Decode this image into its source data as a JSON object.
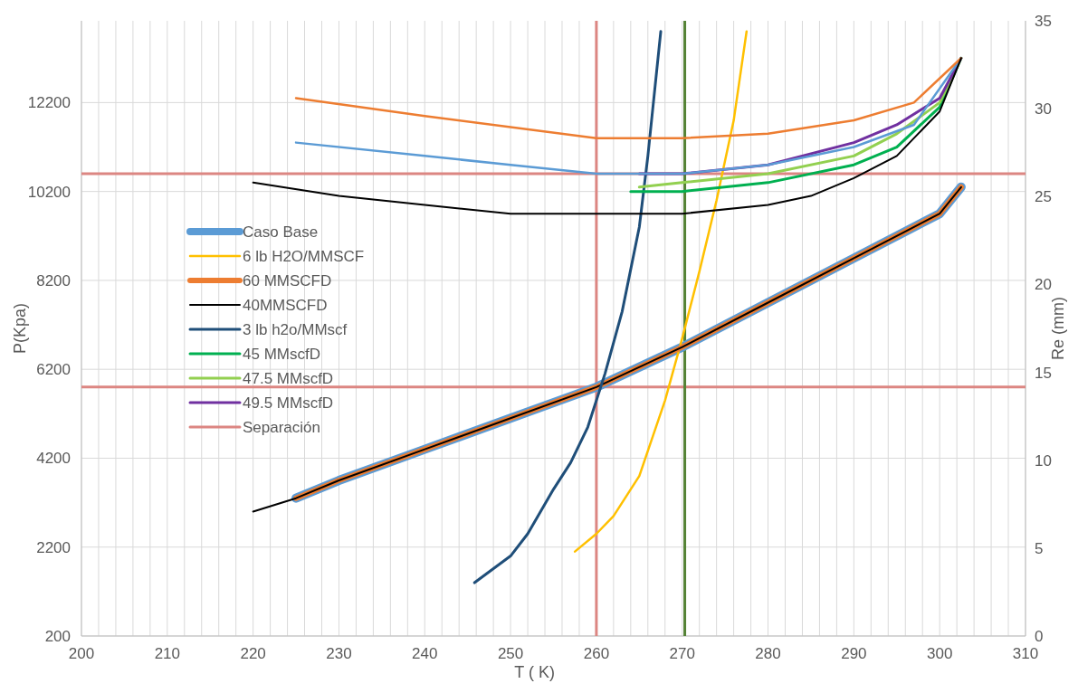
{
  "chart_data": {
    "type": "line",
    "xlabel": "T ( K)",
    "ylabel": "P(Kpa)",
    "y2label": "Re (mm)",
    "xlim": [
      200,
      310
    ],
    "xticks": [
      200,
      {
        "value": 202,
        "label": null
      },
      {
        "value": 204,
        "label": null
      },
      {
        "value": 206,
        "label": null
      },
      {
        "value": 208,
        "label": null
      },
      210,
      {
        "value": 212,
        "label": null
      },
      {
        "value": 214,
        "label": null
      },
      {
        "value": 216,
        "label": null
      },
      {
        "value": 218,
        "label": null
      },
      220,
      {
        "value": 222,
        "label": null
      },
      {
        "value": 224,
        "label": null
      },
      {
        "value": 226,
        "label": null
      },
      {
        "value": 228,
        "label": null
      },
      230,
      {
        "value": 232,
        "label": null
      },
      {
        "value": 234,
        "label": null
      },
      {
        "value": 236,
        "label": null
      },
      {
        "value": 238,
        "label": null
      },
      240,
      {
        "value": 242,
        "label": null
      },
      {
        "value": 244,
        "label": null
      },
      {
        "value": 246,
        "label": null
      },
      {
        "value": 248,
        "label": null
      },
      250,
      {
        "value": 252,
        "label": null
      },
      {
        "value": 254,
        "label": null
      },
      {
        "value": 256,
        "label": null
      },
      {
        "value": 258,
        "label": null
      },
      260,
      {
        "value": 262,
        "label": null
      },
      {
        "value": 264,
        "label": null
      },
      {
        "value": 266,
        "label": null
      },
      {
        "value": 268,
        "label": null
      },
      270,
      {
        "value": 272,
        "label": null
      },
      {
        "value": 274,
        "label": null
      },
      {
        "value": 276,
        "label": null
      },
      {
        "value": 278,
        "label": null
      },
      280,
      {
        "value": 282,
        "label": null
      },
      {
        "value": 284,
        "label": null
      },
      {
        "value": 286,
        "label": null
      },
      {
        "value": 288,
        "label": null
      },
      290,
      {
        "value": 292,
        "label": null
      },
      {
        "value": 294,
        "label": null
      },
      {
        "value": 296,
        "label": null
      },
      {
        "value": 298,
        "label": null
      },
      300,
      {
        "value": 302,
        "label": null
      },
      {
        "value": 304,
        "label": null
      },
      {
        "value": 306,
        "label": null
      },
      {
        "value": 308,
        "label": null
      },
      310
    ],
    "ylim": [
      200,
      14040
    ],
    "yticks": [
      200,
      2200,
      4200,
      6200,
      8200,
      10200,
      12200
    ],
    "y2lim": [
      0,
      35
    ],
    "y2ticks": [
      0,
      5,
      10,
      15,
      20,
      25,
      30,
      35
    ],
    "grid": true,
    "legend": "left",
    "series": [
      {
        "name": "Caso Base",
        "color": "#5b9bd5",
        "x": [
          225,
          230,
          240,
          250,
          260,
          270,
          280,
          290,
          300,
          302.5
        ],
        "values": [
          3300,
          3700,
          4400,
          5100,
          5800,
          6700,
          7700,
          8700,
          9700,
          10300
        ]
      },
      {
        "name": "6 lb H2O/MMSCF",
        "color": "#ffc000",
        "x": [
          257.5,
          260,
          262,
          265,
          268,
          270,
          272,
          274,
          276,
          277.5
        ],
        "values": [
          2100,
          2500,
          2900,
          3800,
          5500,
          6900,
          8400,
          10000,
          11800,
          13800
        ]
      },
      {
        "name": "60 MMSCFD",
        "color": "#ed7d31",
        "x": [
          225,
          230,
          240,
          250,
          260,
          270,
          280,
          290,
          300,
          302.5
        ],
        "values": [
          3300,
          3700,
          4400,
          5100,
          5800,
          6700,
          7700,
          8700,
          9700,
          10300
        ]
      },
      {
        "name": "40MMSCFD",
        "color": "#000000",
        "x": [
          220,
          225,
          230,
          240,
          250,
          260,
          270,
          280,
          290,
          300,
          302.5
        ],
        "values": [
          3000,
          3300,
          3700,
          4400,
          5100,
          5800,
          6700,
          7700,
          8700,
          9700,
          10300
        ]
      },
      {
        "name": "3 lb h2o/MMscf",
        "color": "#1f4e79",
        "x": [
          245.8,
          250,
          252,
          255,
          257,
          259,
          261,
          263,
          265,
          266,
          267.5
        ],
        "values": [
          1400,
          2000,
          2500,
          3500,
          4100,
          4900,
          6100,
          7500,
          9400,
          11000,
          13800
        ]
      },
      {
        "name": "45 MMscfD",
        "color": "#00b050",
        "x": [
          264,
          270,
          280,
          290,
          295,
          300,
          302.5
        ],
        "values": [
          10200,
          10200,
          10400,
          10800,
          11200,
          12100,
          13200
        ]
      },
      {
        "name": "47.5 MMscfD",
        "color": "#92d050",
        "x": [
          265,
          270,
          280,
          290,
          295,
          300,
          302.5
        ],
        "values": [
          10300,
          10400,
          10600,
          11000,
          11500,
          12200,
          13200
        ]
      },
      {
        "name": "49.5 MMscfD",
        "color": "#7030a0",
        "x": [
          265,
          270,
          280,
          290,
          295,
          300,
          302.5
        ],
        "values": [
          10600,
          10600,
          10800,
          11300,
          11700,
          12300,
          13200
        ]
      },
      {
        "color": "#5b9bd5",
        "x": [
          225,
          240,
          250,
          260,
          270,
          280,
          290,
          297,
          302.5
        ],
        "values": [
          11300,
          11000,
          10800,
          10600,
          10600,
          10800,
          11200,
          11700,
          13200
        ]
      },
      {
        "color": "#ed7d31",
        "x": [
          225,
          240,
          260,
          270,
          280,
          290,
          297,
          302.5
        ],
        "values": [
          12300,
          11900,
          11400,
          11400,
          11500,
          11800,
          12200,
          13200
        ]
      },
      {
        "color": "#000000",
        "x": [
          220,
          230,
          240,
          250,
          260,
          270,
          280,
          285,
          290,
          295,
          300,
          302.5
        ],
        "values": [
          10400,
          10100,
          9900,
          9700,
          9700,
          9700,
          9900,
          10100,
          10500,
          11000,
          12000,
          13200
        ]
      }
    ],
    "ref_lines": [
      {
        "axis": "y",
        "value": 10600,
        "label": "Separación",
        "color": "#dc8682"
      },
      {
        "axis": "y",
        "value": 5800,
        "color": "#dc8682"
      },
      {
        "axis": "x",
        "value": 260,
        "color": "#dc8682"
      },
      {
        "axis": "x",
        "value": 270.3,
        "color": "#548235"
      }
    ]
  }
}
